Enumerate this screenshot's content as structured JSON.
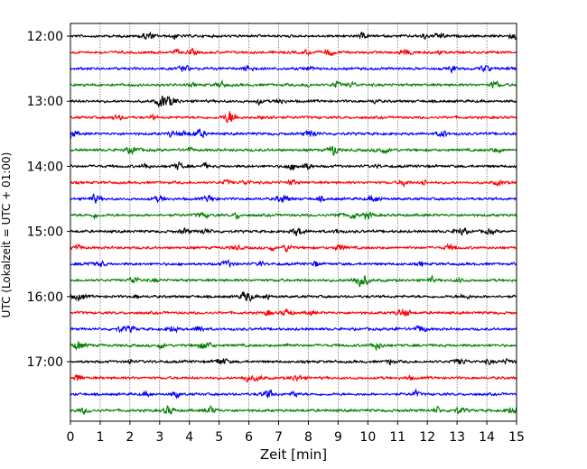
{
  "chart_data": {
    "type": "line",
    "title": "",
    "xlabel": "Zeit  [min]",
    "ylabel": "UTC (Lokalzeit = UTC + 01:00)",
    "xlim": [
      0,
      15
    ],
    "x_ticks": [
      "0",
      "1",
      "2",
      "3",
      "4",
      "5",
      "6",
      "7",
      "8",
      "9",
      "10",
      "11",
      "12",
      "13",
      "14",
      "15"
    ],
    "y_tick_labels": [
      "12:00",
      "13:00",
      "14:00",
      "15:00",
      "16:00",
      "17:00"
    ],
    "y_tick_rows": [
      0,
      4,
      8,
      12,
      16,
      20
    ],
    "row_count": 24,
    "row_interval_minutes": 15,
    "grid": "vertical dotted",
    "series_colors": [
      "#000000",
      "#ff0000",
      "#0000ff",
      "#008000"
    ],
    "series": [
      {
        "start": "12:00",
        "color": "#000000"
      },
      {
        "start": "12:15",
        "color": "#ff0000"
      },
      {
        "start": "12:30",
        "color": "#0000ff"
      },
      {
        "start": "12:45",
        "color": "#008000"
      },
      {
        "start": "13:00",
        "color": "#000000"
      },
      {
        "start": "13:15",
        "color": "#ff0000"
      },
      {
        "start": "13:30",
        "color": "#0000ff"
      },
      {
        "start": "13:45",
        "color": "#008000"
      },
      {
        "start": "14:00",
        "color": "#000000"
      },
      {
        "start": "14:15",
        "color": "#ff0000"
      },
      {
        "start": "14:30",
        "color": "#0000ff"
      },
      {
        "start": "14:45",
        "color": "#008000"
      },
      {
        "start": "15:00",
        "color": "#000000"
      },
      {
        "start": "15:15",
        "color": "#ff0000"
      },
      {
        "start": "15:30",
        "color": "#0000ff"
      },
      {
        "start": "15:45",
        "color": "#008000"
      },
      {
        "start": "16:00",
        "color": "#000000"
      },
      {
        "start": "16:15",
        "color": "#ff0000"
      },
      {
        "start": "16:30",
        "color": "#0000ff"
      },
      {
        "start": "16:45",
        "color": "#008000"
      },
      {
        "start": "17:00",
        "color": "#000000"
      },
      {
        "start": "17:15",
        "color": "#ff0000"
      },
      {
        "start": "17:30",
        "color": "#0000ff"
      },
      {
        "start": "17:45",
        "color": "#008000"
      }
    ]
  }
}
